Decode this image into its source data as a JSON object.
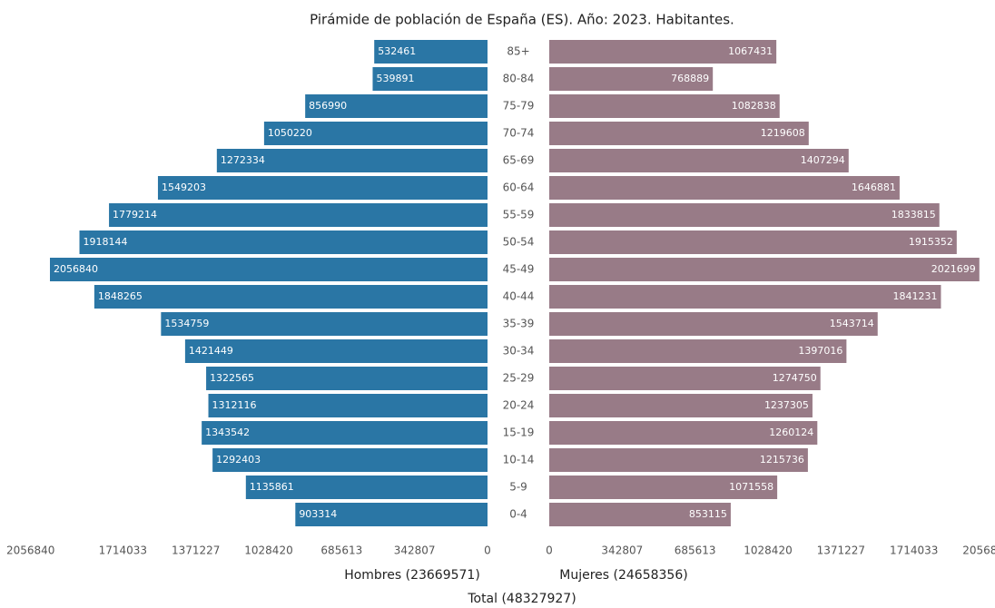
{
  "chart_data": {
    "type": "pyramid",
    "title": "Pirámide de población de España (ES). Año: 2023. Habitantes.",
    "categories": [
      "85+",
      "80-84",
      "75-79",
      "70-74",
      "65-69",
      "60-64",
      "55-59",
      "50-54",
      "45-49",
      "40-44",
      "35-39",
      "30-34",
      "25-29",
      "20-24",
      "15-19",
      "10-14",
      "5-9",
      "0-4"
    ],
    "series": [
      {
        "name": "Hombres (23669571)",
        "color": "#2a76a5",
        "values": [
          532461,
          539891,
          856990,
          1050220,
          1272334,
          1549203,
          1779214,
          1918144,
          2056840,
          1848265,
          1534759,
          1421449,
          1322565,
          1312116,
          1343542,
          1292403,
          1135861,
          903314
        ]
      },
      {
        "name": "Mujeres (24658356)",
        "color": "#987b87",
        "values": [
          1067431,
          768889,
          1082838,
          1219608,
          1407294,
          1646881,
          1833815,
          1915352,
          2021699,
          1841231,
          1543714,
          1397016,
          1274750,
          1237305,
          1260124,
          1215736,
          1071558,
          853115
        ]
      }
    ],
    "xlabel": "Total (48327927)",
    "xlim": [
      0,
      2056840
    ],
    "xticks": [
      0,
      342807,
      685613,
      1028420,
      1371227,
      1714033,
      2056840
    ]
  }
}
